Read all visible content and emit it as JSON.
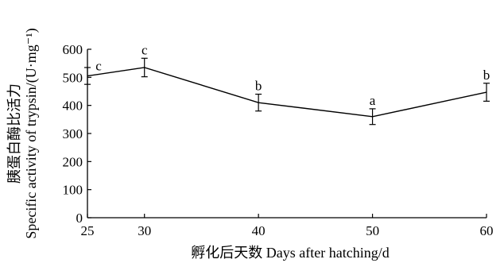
{
  "chart_data": {
    "type": "line",
    "xlabel": "孵化后天数 Days after hatching/d",
    "ylabel_line1": "胰蛋白酶比活力",
    "ylabel_line2": "Specific activity of trypsin/(U·mg⁻¹)",
    "xlim": [
      25,
      60
    ],
    "ylim": [
      0,
      600
    ],
    "x_ticks": [
      25,
      30,
      40,
      50,
      60
    ],
    "y_ticks": [
      0,
      100,
      200,
      300,
      400,
      500,
      600
    ],
    "series": [
      {
        "x": [
          25,
          30,
          40,
          50,
          60
        ],
        "y": [
          505,
          535,
          410,
          360,
          447
        ],
        "error": [
          30,
          33,
          30,
          28,
          32
        ],
        "significance": [
          "c",
          "c",
          "b",
          "a",
          "b"
        ]
      }
    ],
    "grid": false
  }
}
